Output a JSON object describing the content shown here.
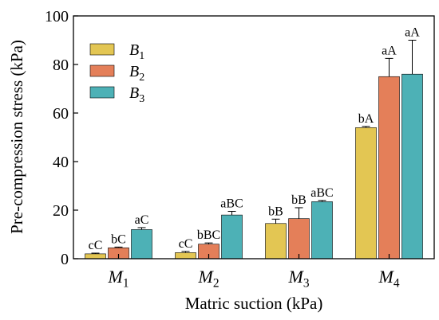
{
  "chart_data": {
    "type": "bar",
    "xlabel": "Matric suction (kPa)",
    "ylabel": "Pre-compression stress (kPa)",
    "ylim": [
      0,
      100
    ],
    "yticks": [
      0,
      20,
      40,
      60,
      80,
      100
    ],
    "categories": [
      {
        "base": "M",
        "sub": "1"
      },
      {
        "base": "M",
        "sub": "2"
      },
      {
        "base": "M",
        "sub": "3"
      },
      {
        "base": "M",
        "sub": "4"
      }
    ],
    "series": [
      {
        "name": {
          "base": "B",
          "sub": "1"
        },
        "color": "#E3C653",
        "values": [
          2,
          2.5,
          14.5,
          54
        ],
        "errors": [
          0.3,
          0.5,
          1.8,
          0.5
        ],
        "labels": [
          "cC",
          "cC",
          "bB",
          "bA"
        ]
      },
      {
        "name": {
          "base": "B",
          "sub": "2"
        },
        "color": "#E47F59",
        "values": [
          4.5,
          6,
          16.5,
          75
        ],
        "errors": [
          0.3,
          0.5,
          4.5,
          7.5
        ],
        "labels": [
          "bC",
          "bBC",
          "bB",
          "aA"
        ]
      },
      {
        "name": {
          "base": "B",
          "sub": "3"
        },
        "color": "#4DB1B6",
        "values": [
          12,
          18,
          23.5,
          76
        ],
        "errors": [
          0.8,
          1.5,
          0.5,
          14
        ],
        "labels": [
          "aC",
          "aBC",
          "aBC",
          "aA"
        ]
      }
    ],
    "legend_position": "top-left",
    "grid": false
  }
}
